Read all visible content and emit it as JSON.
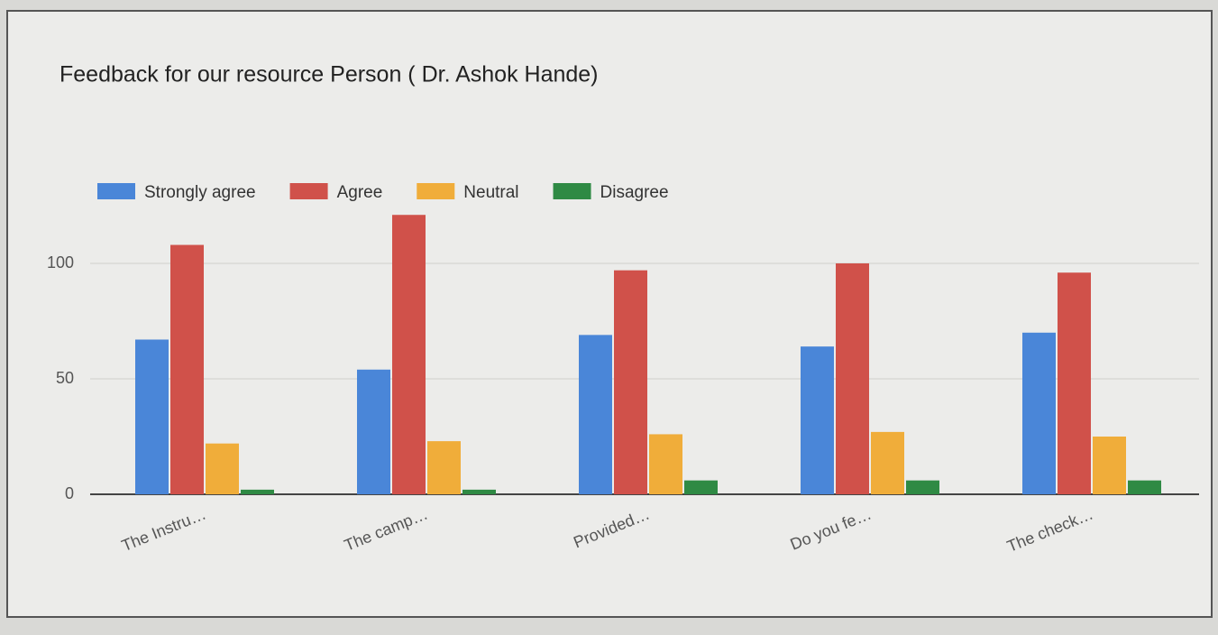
{
  "chart_data": {
    "type": "bar",
    "title": "Feedback for our resource Person ( Dr. Ashok Hande)",
    "categories": [
      "The Instru…",
      "The camp…",
      "Provided…",
      "Do you fe…",
      "The check…"
    ],
    "series": [
      {
        "name": "Strongly agree",
        "color": "#4a86d8",
        "values": [
          67,
          54,
          69,
          64,
          70
        ]
      },
      {
        "name": "Agree",
        "color": "#d0514a",
        "values": [
          108,
          121,
          97,
          100,
          96
        ]
      },
      {
        "name": "Neutral",
        "color": "#f0ad3a",
        "values": [
          22,
          23,
          26,
          27,
          25
        ]
      },
      {
        "name": "Disagree",
        "color": "#2f8a44",
        "values": [
          2,
          2,
          6,
          6,
          6
        ]
      }
    ],
    "ylim": [
      0,
      125
    ],
    "yticks": [
      0,
      50,
      100
    ],
    "grid": true,
    "legend": "top"
  }
}
